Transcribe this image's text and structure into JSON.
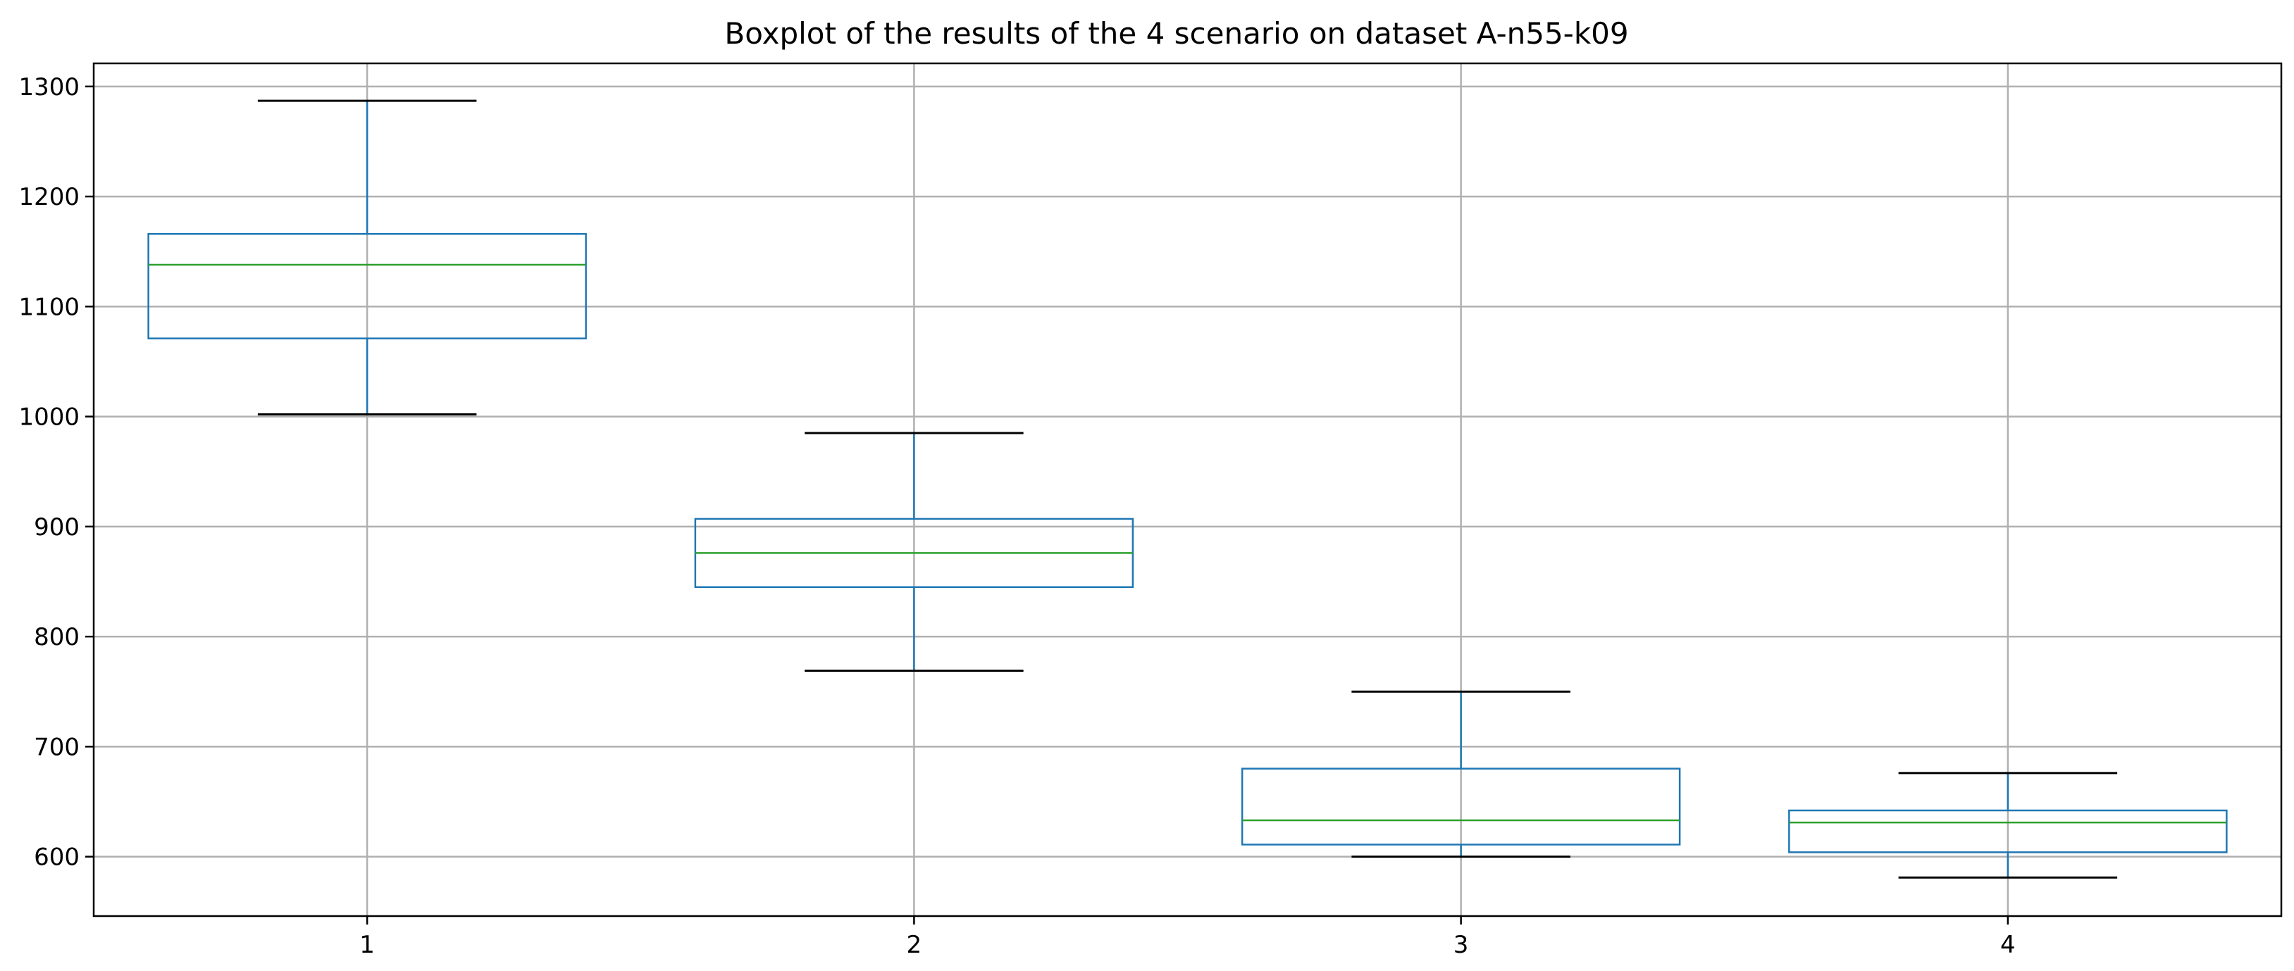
{
  "chart_data": {
    "type": "boxplot",
    "title": "Boxplot of the results of the 4 scenario on dataset A-n55-k09",
    "xlabel": "",
    "ylabel": "",
    "categories": [
      "1",
      "2",
      "3",
      "4"
    ],
    "boxes": [
      {
        "category": "1",
        "whisker_low": 1002,
        "q1": 1071,
        "median": 1138,
        "q3": 1166,
        "whisker_high": 1287
      },
      {
        "category": "2",
        "whisker_low": 769,
        "q1": 845,
        "median": 876,
        "q3": 907,
        "whisker_high": 985
      },
      {
        "category": "3",
        "whisker_low": 600,
        "q1": 611,
        "median": 633,
        "q3": 680,
        "whisker_high": 750
      },
      {
        "category": "4",
        "whisker_low": 581,
        "q1": 604,
        "median": 631,
        "q3": 642,
        "whisker_high": 676
      }
    ],
    "ylim": [
      546,
      1321
    ],
    "yticks": [
      600,
      700,
      800,
      900,
      1000,
      1100,
      1200,
      1300
    ],
    "xlim": [
      0.5,
      4.5
    ],
    "grid": true,
    "colors": {
      "box": "#1f77b4",
      "median": "#2ca02c",
      "whisker_cap": "#000000",
      "grid": "#b0b0b0",
      "axes": "#000000"
    }
  }
}
